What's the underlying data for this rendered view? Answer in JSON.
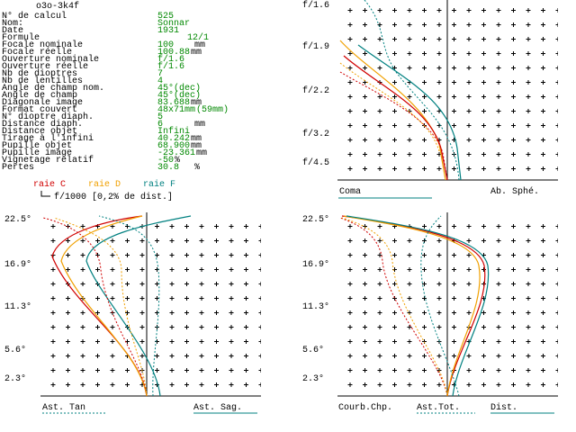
{
  "header": {
    "title": "o3o-3k4f"
  },
  "parameters": {
    "rows": [
      {
        "label": "N° de calcul",
        "value": "525"
      },
      {
        "label": "Nom:",
        "value": "Sonnar"
      },
      {
        "label": "Date",
        "value": "1931"
      },
      {
        "label": "Formule",
        "value": "12/1"
      },
      {
        "label": "Focale nominale",
        "value": "100",
        "unit": "mm"
      },
      {
        "label": "Focale réelle",
        "value": "100.88",
        "unit": "mm"
      },
      {
        "label": "Ouverture nominale",
        "value": "f/1.6"
      },
      {
        "label": "Ouverture réelle",
        "value": "f/1.6"
      },
      {
        "label": "Nb de dioptres",
        "value": "7"
      },
      {
        "label": "Nb de lentilles",
        "value": "4"
      },
      {
        "label": "Angle de champ nom.",
        "value": "45°(dec)"
      },
      {
        "label": "Angle de champ",
        "value": "45°(dec)"
      },
      {
        "label": "Diagonale image",
        "value": "83.688",
        "unit": "mm"
      },
      {
        "label": "Format couvert",
        "value": "48x71mm",
        "unit": "(59mm)"
      },
      {
        "label": "N° dioptre diaph.",
        "value": "5"
      },
      {
        "label": "Distance diaph.",
        "value": "6",
        "unit": "mm"
      },
      {
        "label": "Distance objet",
        "value": "Infini"
      },
      {
        "label": "Tirage à l'infini",
        "value": "40.242",
        "unit": "mm"
      },
      {
        "label": "Pupille objet",
        "value": "68.900",
        "unit": "mm"
      },
      {
        "label": "Pupille image",
        "value": "-23.361",
        "unit": "mm"
      },
      {
        "label": "Vignetage relatif",
        "value": "-50",
        "unit": "%"
      },
      {
        "label": "Pertes",
        "value": "30.8",
        "unit": "%"
      }
    ]
  },
  "legend": {
    "items": [
      "raie C",
      "raie D",
      "raie F"
    ],
    "scale": "f/1000 [0,2% de dist.]"
  },
  "coma_plot": {
    "y_labels": [
      "f/1.6",
      "f/1.9",
      "f/2.2",
      "f/3.2",
      "f/4.5"
    ],
    "labels": [
      "Coma",
      "Ab. Sphé."
    ]
  },
  "astig_plot": {
    "y_labels": [
      "22.5°",
      "16.9°",
      "11.3°",
      "5.6°",
      "2.3°"
    ],
    "labels": [
      "Ast. Tan",
      "Ast. Sag."
    ]
  },
  "field_plot": {
    "y_labels": [
      "22.5°",
      "16.9°",
      "11.3°",
      "5.6°",
      "2.3°"
    ],
    "labels": [
      "Courb.Chp.",
      "Ast.Tot.",
      "Dist."
    ]
  }
}
